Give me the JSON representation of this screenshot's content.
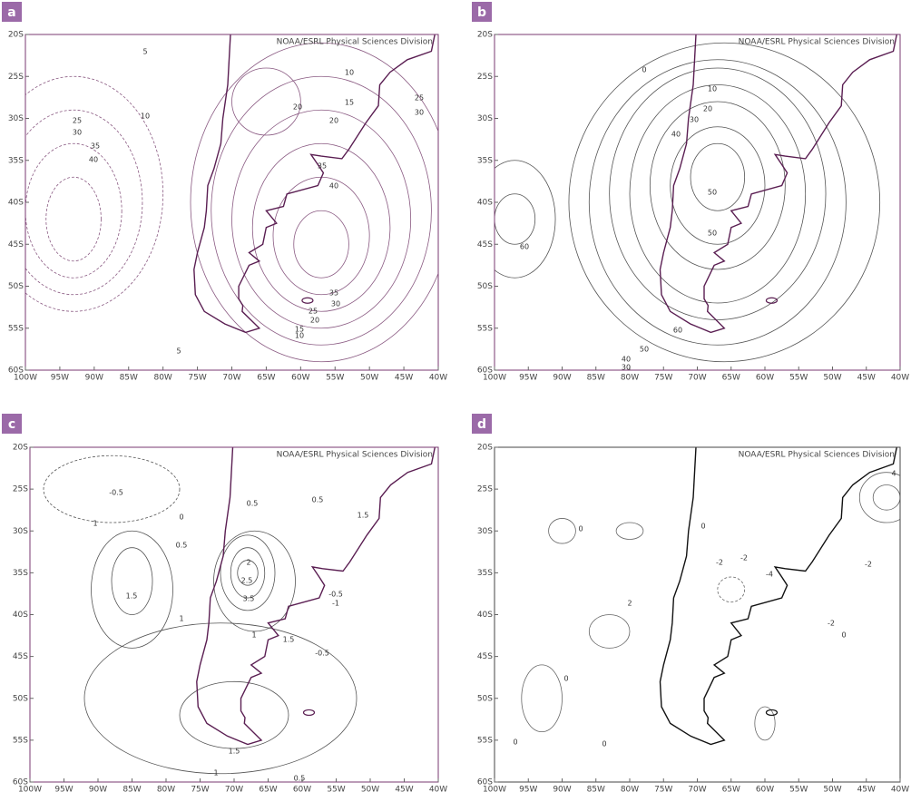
{
  "panels": [
    {
      "label": "a",
      "credit": "NOAA/ESRL Physical Sciences Division",
      "lat_ticks": [
        "20S",
        "25S",
        "30S",
        "35S",
        "40S",
        "45S",
        "50S",
        "55S",
        "60S"
      ],
      "lon_ticks": [
        "100W",
        "95W",
        "90W",
        "85W",
        "80W",
        "75W",
        "70W",
        "65W",
        "60W",
        "55W",
        "50W",
        "45W",
        "40W"
      ],
      "contour_labels": [
        "5",
        "10",
        "25",
        "30",
        "35",
        "40",
        "10",
        "15",
        "20",
        "25",
        "30",
        "20",
        "35",
        "40",
        "35",
        "30",
        "25",
        "20",
        "15",
        "10",
        "5"
      ]
    },
    {
      "label": "b",
      "credit": "NOAA/ESRL Physical Sciences Division",
      "lat_ticks": [
        "20S",
        "25S",
        "30S",
        "35S",
        "40S",
        "45S",
        "50S",
        "55S",
        "60S"
      ],
      "lon_ticks": [
        "100W",
        "95W",
        "90W",
        "85W",
        "80W",
        "75W",
        "70W",
        "65W",
        "60W",
        "55W",
        "50W",
        "45W",
        "40W"
      ],
      "contour_labels": [
        "0",
        "10",
        "20",
        "30",
        "40",
        "50",
        "50",
        "60",
        "60",
        "50",
        "40",
        "30"
      ]
    },
    {
      "label": "c",
      "credit": "NOAA/ESRL Physical Sciences Division",
      "lat_ticks": [
        "20S",
        "25S",
        "30S",
        "35S",
        "40S",
        "45S",
        "50S",
        "55S",
        "60S"
      ],
      "lon_ticks": [
        "100W",
        "95W",
        "90W",
        "85W",
        "80W",
        "75W",
        "70W",
        "65W",
        "60W",
        "55W",
        "50W",
        "45W",
        "40W"
      ],
      "contour_labels": [
        "-0.5",
        "0",
        "1",
        "0.5",
        "1.5",
        "1",
        "0.5",
        "0.5",
        "1.5",
        "2",
        "2.5",
        "3.5",
        "1",
        "-0.5",
        "-1",
        "1.5",
        "-0.5",
        "1.5",
        "1",
        "0.5"
      ]
    },
    {
      "label": "d",
      "credit": "NOAA/ESRL Physical Sciences Division",
      "lat_ticks": [
        "20S",
        "25S",
        "30S",
        "35S",
        "40S",
        "45S",
        "50S",
        "55S",
        "60S"
      ],
      "lon_ticks": [
        "100W",
        "95W",
        "90W",
        "85W",
        "80W",
        "75W",
        "70W",
        "65W",
        "60W",
        "55W",
        "50W",
        "45W",
        "40W"
      ],
      "contour_labels": [
        "0",
        "0",
        "-2",
        "-2",
        "-4",
        "-2",
        "2",
        "-2",
        "0",
        "0",
        "0",
        "0",
        "4"
      ]
    }
  ]
}
